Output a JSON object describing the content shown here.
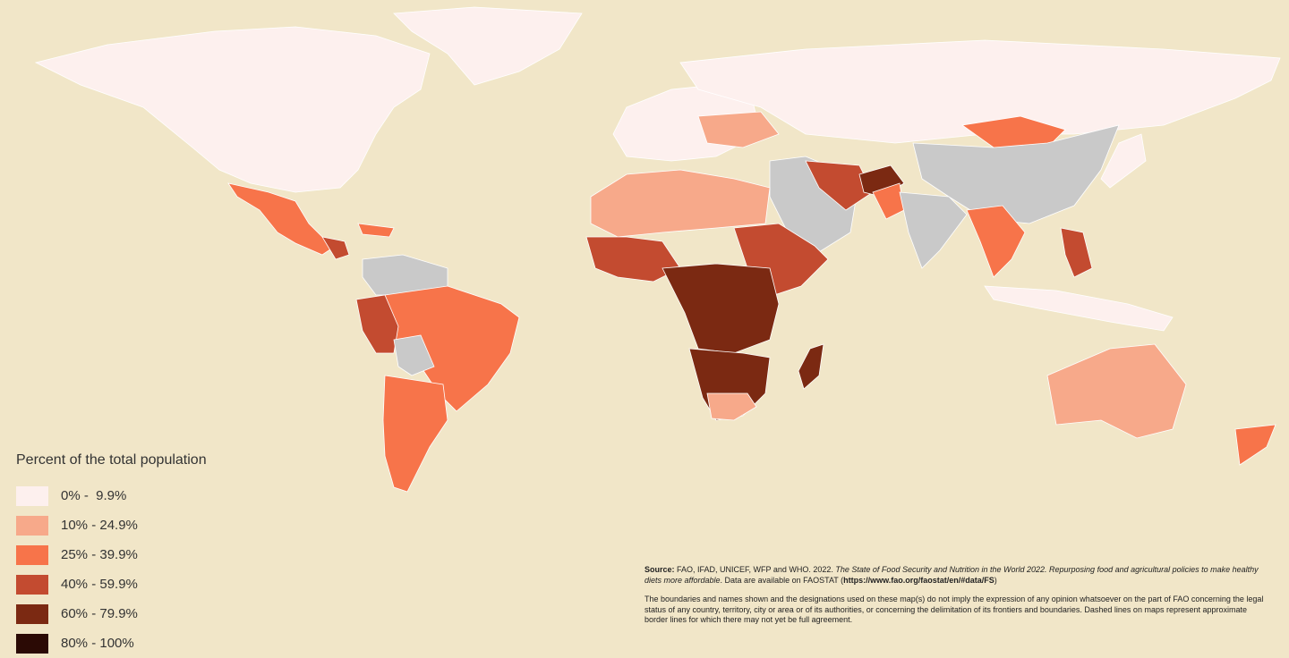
{
  "colors": {
    "background": "#f1e6c8",
    "no_data": "#c9c9c9",
    "c0": "#fdf0ee",
    "c1": "#f7a98a",
    "c2": "#f7744a",
    "c3": "#c34b30",
    "c4": "#7b2912",
    "c5": "#2b0a05"
  },
  "legend": {
    "title": "Percent of the total population",
    "items": [
      {
        "label": "0% -  9.9%",
        "color": "#fdf0ee"
      },
      {
        "label": "10% - 24.9%",
        "color": "#f7a98a"
      },
      {
        "label": "25% - 39.9%",
        "color": "#f7744a"
      },
      {
        "label": "40% - 59.9%",
        "color": "#c34b30"
      },
      {
        "label": "60% - 79.9%",
        "color": "#7b2912"
      },
      {
        "label": "80% - 100%",
        "color": "#2b0a05"
      }
    ]
  },
  "source": {
    "label": "Source:",
    "text1": " FAO, IFAD, UNICEF, WFP and WHO. 2022. ",
    "title_italic": "The State of Food Security and Nutrition in the World 2022. Repurposing food and agricultural policies to make healthy diets more affordable",
    "text2": ". Data are available on FAOSTAT (",
    "url": "https://www.fao.org/faostat/en/#data/FS",
    "text3": ")"
  },
  "disclaimer": "The boundaries and names shown and the designations used on these map(s) do not imply the expression of any opinion whatsoever on the part of FAO concerning the legal status of any country, territory, city or area or of its authorities, or concerning the delimitation of its frontiers and boundaries. Dashed lines on maps represent approximate border lines for which there may not yet be full agreement."
}
